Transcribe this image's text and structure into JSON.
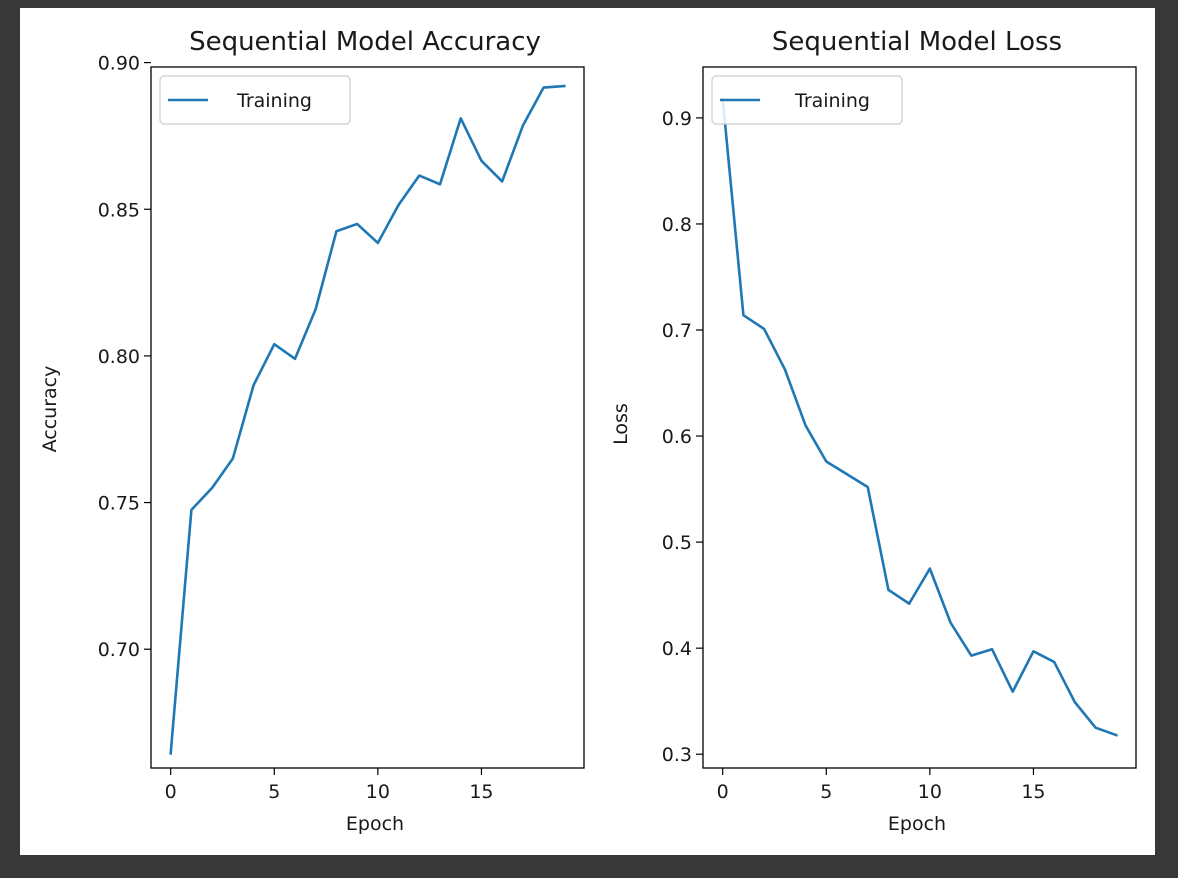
{
  "chart_data": [
    {
      "type": "line",
      "title": "Sequential Model Accuracy",
      "xlabel": "Epoch",
      "ylabel": "Accuracy",
      "xlim": [
        -0.95,
        19.95
      ],
      "ylim": [
        0.6595,
        0.8985
      ],
      "xticks": [
        0,
        5,
        10,
        15
      ],
      "xtick_labels": [
        "0",
        "5",
        "10",
        "15"
      ],
      "yticks": [
        0.7,
        0.75,
        0.8,
        0.85,
        0.9
      ],
      "ytick_labels": [
        "0.70",
        "0.75",
        "0.80",
        "0.85",
        "0.90"
      ],
      "legend": "upper left",
      "grid": false,
      "x": [
        0,
        1,
        2,
        3,
        4,
        5,
        6,
        7,
        8,
        9,
        10,
        11,
        12,
        13,
        14,
        15,
        16,
        17,
        18,
        19
      ],
      "series": [
        {
          "name": "Training",
          "color": "#1f77b4",
          "values": [
            0.6645,
            0.7475,
            0.755,
            0.765,
            0.79,
            0.804,
            0.799,
            0.816,
            0.8425,
            0.845,
            0.8385,
            0.8515,
            0.8615,
            0.8585,
            0.881,
            0.8665,
            0.8595,
            0.8785,
            0.8915,
            0.892
          ]
        }
      ]
    },
    {
      "type": "line",
      "title": "Sequential Model Loss",
      "xlabel": "Epoch",
      "ylabel": "Loss",
      "xlim": [
        -0.95,
        19.95
      ],
      "ylim": [
        0.287,
        0.948
      ],
      "xticks": [
        0,
        5,
        10,
        15
      ],
      "xtick_labels": [
        "0",
        "5",
        "10",
        "15"
      ],
      "yticks": [
        0.3,
        0.4,
        0.5,
        0.6,
        0.7,
        0.8,
        0.9
      ],
      "ytick_labels": [
        "0.3",
        "0.4",
        "0.5",
        "0.6",
        "0.7",
        "0.8",
        "0.9"
      ],
      "legend": "upper left",
      "grid": false,
      "x": [
        0,
        1,
        2,
        3,
        4,
        5,
        6,
        7,
        8,
        9,
        10,
        11,
        12,
        13,
        14,
        15,
        16,
        17,
        18,
        19
      ],
      "series": [
        {
          "name": "Training",
          "color": "#1f77b4",
          "values": [
            0.918,
            0.714,
            0.701,
            0.663,
            0.61,
            0.576,
            0.564,
            0.552,
            0.455,
            0.442,
            0.475,
            0.424,
            0.393,
            0.399,
            0.359,
            0.397,
            0.387,
            0.349,
            0.325,
            0.318
          ]
        }
      ]
    }
  ]
}
